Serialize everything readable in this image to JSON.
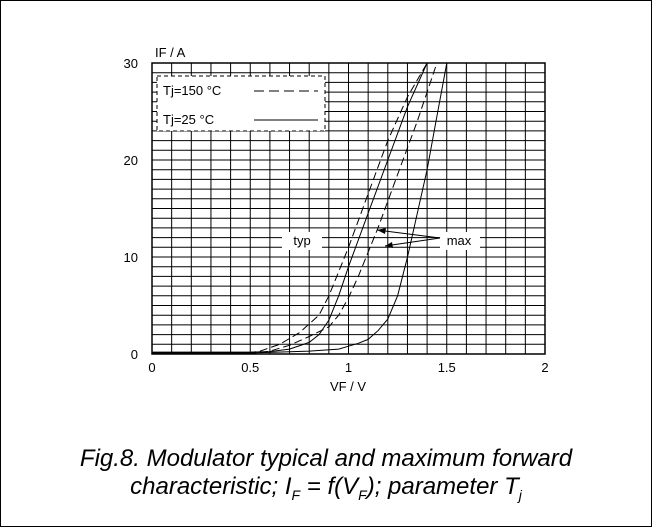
{
  "chart_data": {
    "type": "line",
    "xlabel": "VF / V",
    "ylabel": "IF / A",
    "xlim": [
      0,
      2
    ],
    "ylim": [
      0,
      30
    ],
    "x_ticks": [
      "0",
      "0.5",
      "1",
      "1.5",
      "2"
    ],
    "y_ticks": [
      "0",
      "10",
      "20",
      "30"
    ],
    "grid": true,
    "legend_position": "top-left",
    "legend": [
      {
        "label": "Tj=150 °C",
        "style": "dashed"
      },
      {
        "label": "Tj=25 °C",
        "style": "solid"
      }
    ],
    "annotations": [
      "typ",
      "max"
    ],
    "series": [
      {
        "condition": "Tj=150 °C",
        "curve": "typ",
        "style": "dashed",
        "points": [
          [
            0,
            0
          ],
          [
            0.45,
            0
          ],
          [
            0.55,
            0.3
          ],
          [
            0.65,
            1.0
          ],
          [
            0.75,
            2.2
          ],
          [
            0.85,
            4.0
          ],
          [
            0.9,
            6.0
          ],
          [
            0.95,
            8.5
          ],
          [
            1.0,
            11.0
          ],
          [
            1.1,
            16.5
          ],
          [
            1.2,
            22.0
          ],
          [
            1.3,
            26.5
          ],
          [
            1.4,
            30.0
          ]
        ]
      },
      {
        "condition": "Tj=150 °C",
        "curve": "max",
        "style": "dashed",
        "points": [
          [
            0,
            0
          ],
          [
            0.5,
            0
          ],
          [
            0.6,
            0.3
          ],
          [
            0.7,
            0.9
          ],
          [
            0.8,
            1.8
          ],
          [
            0.9,
            2.8
          ],
          [
            0.95,
            4.0
          ],
          [
            1.0,
            5.8
          ],
          [
            1.05,
            8.0
          ],
          [
            1.15,
            13.0
          ],
          [
            1.25,
            18.5
          ],
          [
            1.35,
            24.0
          ],
          [
            1.45,
            30.0
          ]
        ]
      },
      {
        "condition": "Tj=25 °C",
        "curve": "typ",
        "style": "solid",
        "points": [
          [
            0,
            0.2
          ],
          [
            0.5,
            0.2
          ],
          [
            0.6,
            0.25
          ],
          [
            0.7,
            0.5
          ],
          [
            0.8,
            1.2
          ],
          [
            0.85,
            2.0
          ],
          [
            0.9,
            3.5
          ],
          [
            0.95,
            6.0
          ],
          [
            1.0,
            9.0
          ],
          [
            1.1,
            14.5
          ],
          [
            1.2,
            20.0
          ],
          [
            1.3,
            25.5
          ],
          [
            1.4,
            30.0
          ]
        ]
      },
      {
        "condition": "Tj=25 °C",
        "curve": "max",
        "style": "solid",
        "points": [
          [
            0,
            0.1
          ],
          [
            0.5,
            0.1
          ],
          [
            0.8,
            0.3
          ],
          [
            0.95,
            0.5
          ],
          [
            1.0,
            0.8
          ],
          [
            1.05,
            1.1
          ],
          [
            1.1,
            1.5
          ],
          [
            1.15,
            2.4
          ],
          [
            1.2,
            3.6
          ],
          [
            1.25,
            6.0
          ],
          [
            1.3,
            10.0
          ],
          [
            1.35,
            14.5
          ],
          [
            1.4,
            19.0
          ],
          [
            1.45,
            24.5
          ],
          [
            1.5,
            30.0
          ]
        ]
      }
    ]
  },
  "caption": {
    "line1": "Fig.8.  Modulator typical and maximum forward",
    "line2_prefix": "characteristic; ",
    "line2_formula": "I_F = f(V_F)",
    "line2_suffix": "; parameter T_j"
  }
}
